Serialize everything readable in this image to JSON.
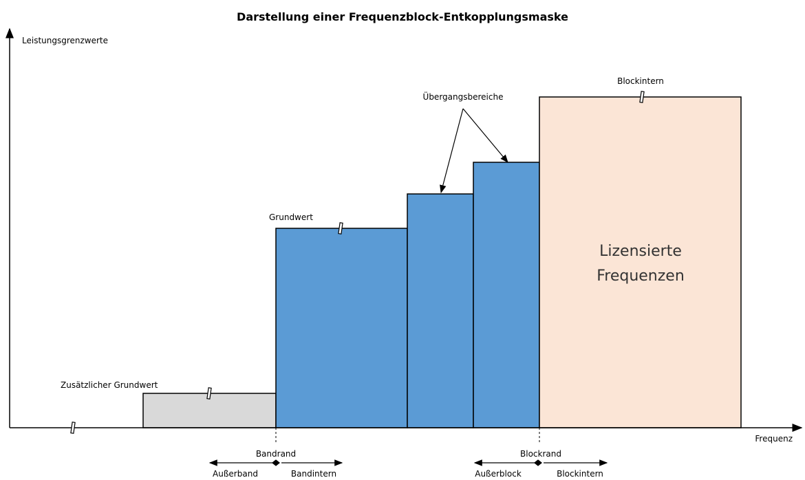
{
  "title": "Darstellung einer Frequenzblock-Entkopplungsmaske",
  "axes": {
    "y_label": "Leistungsgrenzwerte",
    "x_label": "Frequenz"
  },
  "annotations": {
    "additional_base": "Zusätzlicher Grundwert",
    "base": "Grundwert",
    "transition": "Übergangsbereiche",
    "block_internal_top": "Blockintern"
  },
  "licensed": {
    "lines": [
      "Lizensierte",
      "Frequenzen"
    ]
  },
  "band_edge": {
    "label": "Bandrand",
    "left": "Außerband",
    "right": "Bandintern"
  },
  "block_edge": {
    "label": "Blockrand",
    "left": "Außerblock",
    "right": "Blockintern"
  }
}
